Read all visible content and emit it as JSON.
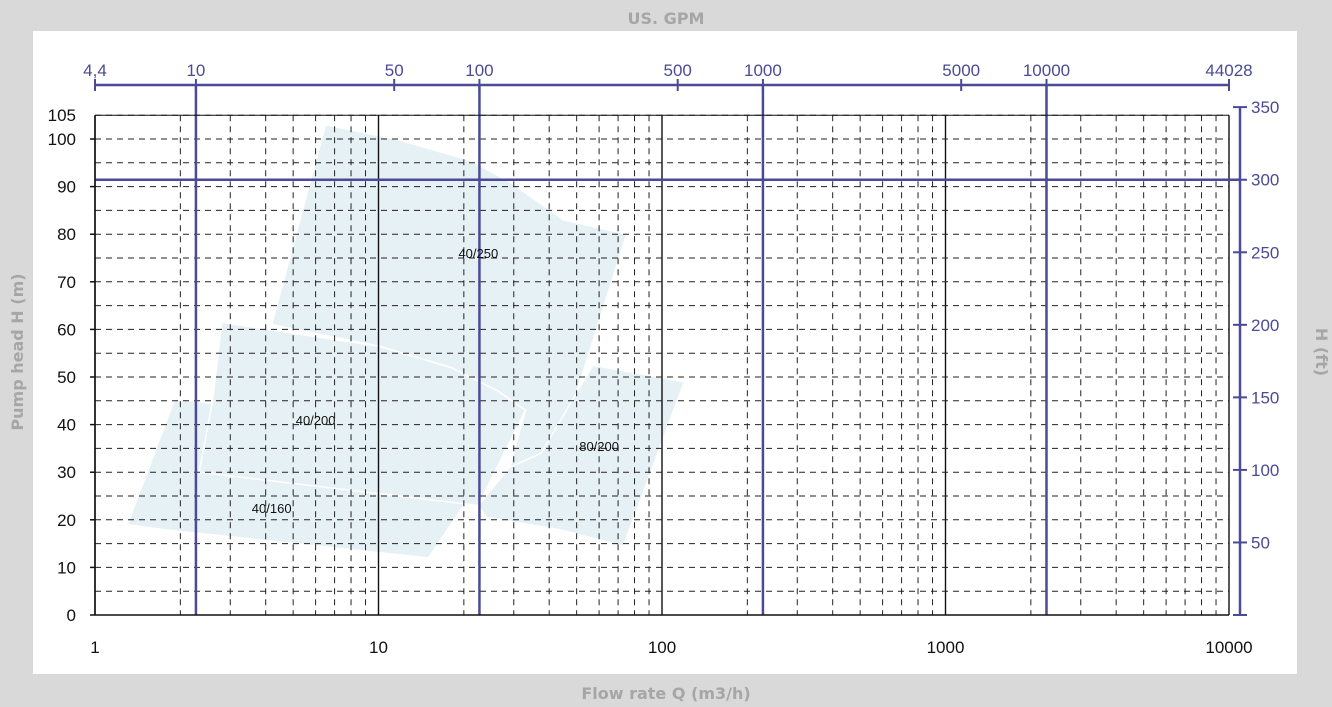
{
  "chart_data": {
    "type": "area",
    "title": "US. GPM",
    "xlabel": "Flow rate Q (m3/h)",
    "ylabel": "Pump head H (m)",
    "y2label": "H (ft)",
    "x_scale": "log",
    "xlim": [
      1,
      10000
    ],
    "ylim": [
      0,
      105
    ],
    "x_ticks": [
      "1",
      "10",
      "100",
      "1000",
      "10000"
    ],
    "y_ticks": [
      "0",
      "10",
      "20",
      "30",
      "40",
      "50",
      "60",
      "70",
      "80",
      "90",
      "100",
      "105"
    ],
    "top_ticks": [
      {
        "label": "4,4",
        "value": 1
      },
      {
        "label": "10",
        "value": 2.27
      },
      {
        "label": "50",
        "value": 11.36
      },
      {
        "label": "100",
        "value": 22.7
      },
      {
        "label": "500",
        "value": 113.6
      },
      {
        "label": "1000",
        "value": 227
      },
      {
        "label": "5000",
        "value": 1136
      },
      {
        "label": "10000",
        "value": 2271
      },
      {
        "label": "44028",
        "value": 10000
      }
    ],
    "right_ticks": [
      {
        "label": "50",
        "value": 15.24
      },
      {
        "label": "100",
        "value": 30.48
      },
      {
        "label": "150",
        "value": 45.72
      },
      {
        "label": "200",
        "value": 60.96
      },
      {
        "label": "250",
        "value": 76.2
      },
      {
        "label": "300",
        "value": 91.44
      },
      {
        "label": "350",
        "value": 106.7
      }
    ],
    "grid": true,
    "series": [
      {
        "name": "40/160",
        "points": [
          [
            1.3,
            19
          ],
          [
            1.7,
            18
          ],
          [
            15,
            12
          ],
          [
            28,
            36
          ],
          [
            2.2,
            45
          ],
          [
            1.9,
            45
          ]
        ]
      },
      {
        "name": "40/250",
        "points": [
          [
            4.2,
            61
          ],
          [
            6.5,
            103
          ],
          [
            11.5,
            100
          ],
          [
            21,
            95.5
          ],
          [
            29,
            91
          ],
          [
            45,
            83
          ],
          [
            75,
            80
          ],
          [
            40,
            28.5
          ],
          [
            29,
            31
          ],
          [
            33,
            43
          ],
          [
            26.5,
            47
          ],
          [
            18,
            52
          ],
          [
            10,
            56.5
          ]
        ]
      },
      {
        "name": "80/200",
        "points": [
          [
            37.5,
            34
          ],
          [
            57,
            52.5
          ],
          [
            120,
            49
          ],
          [
            73,
            14.5
          ],
          [
            43,
            18
          ],
          [
            24,
            20.5
          ],
          [
            22.5,
            23
          ],
          [
            29,
            31
          ]
        ]
      },
      {
        "name": "40/200",
        "points": [
          [
            2.8,
            61.5
          ],
          [
            10,
            56.5
          ],
          [
            18,
            52
          ],
          [
            26.5,
            47
          ],
          [
            33,
            43
          ],
          [
            22.5,
            23
          ],
          [
            2.33,
            30
          ],
          [
            2.6,
            45
          ]
        ]
      }
    ]
  }
}
